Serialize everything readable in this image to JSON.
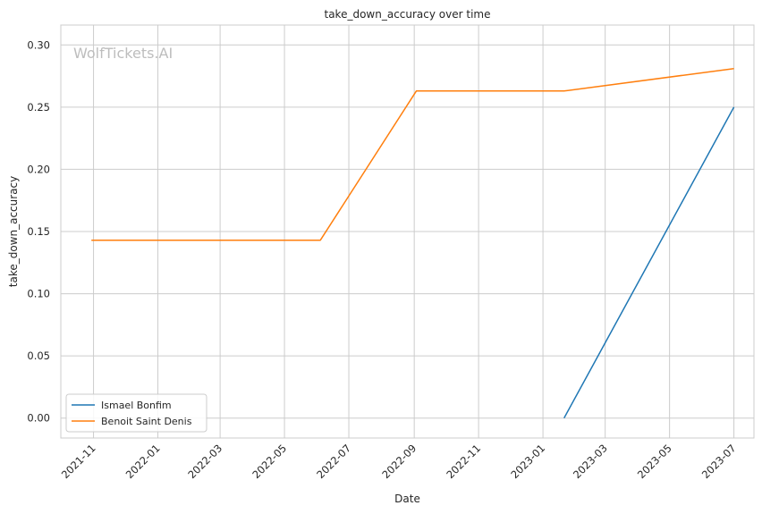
{
  "chart_data": {
    "type": "line",
    "title": "take_down_accuracy over time",
    "xlabel": "Date",
    "ylabel": "take_down_accuracy",
    "watermark": "WolfTickets.AI",
    "x_ticks": [
      "2021-11",
      "2022-01",
      "2022-03",
      "2022-05",
      "2022-07",
      "2022-09",
      "2022-11",
      "2023-01",
      "2023-03",
      "2023-05",
      "2023-07"
    ],
    "y_ticks": [
      "0.00",
      "0.05",
      "0.10",
      "0.15",
      "0.20",
      "0.25",
      "0.30"
    ],
    "xlim": [
      "2021-10-01",
      "2023-07-20"
    ],
    "ylim": [
      -0.016,
      0.316
    ],
    "grid": true,
    "legend_position": "lower-left",
    "series": [
      {
        "name": "Ismael Bonfim",
        "color": "#1f77b4",
        "points": [
          [
            "2023-01-21",
            0.0
          ],
          [
            "2023-07-01",
            0.25
          ]
        ]
      },
      {
        "name": "Benoit Saint Denis",
        "color": "#ff7f0e",
        "points": [
          [
            "2021-10-30",
            0.143
          ],
          [
            "2022-06-04",
            0.143
          ],
          [
            "2022-09-03",
            0.263
          ],
          [
            "2023-01-21",
            0.263
          ],
          [
            "2023-07-01",
            0.281
          ]
        ]
      }
    ]
  }
}
